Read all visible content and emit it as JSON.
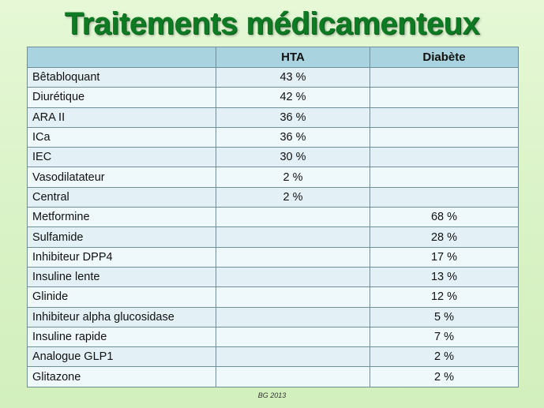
{
  "title": "Traitements médicamenteux",
  "table": {
    "headers": [
      "",
      "HTA",
      "Diabète"
    ],
    "rows": [
      {
        "name": "Bêtabloquant",
        "hta": "43 %",
        "diabete": ""
      },
      {
        "name": "Diurétique",
        "hta": "42 %",
        "diabete": ""
      },
      {
        "name": "ARA II",
        "hta": "36 %",
        "diabete": ""
      },
      {
        "name": "ICa",
        "hta": "36 %",
        "diabete": ""
      },
      {
        "name": "IEC",
        "hta": "30 %",
        "diabete": ""
      },
      {
        "name": "Vasodilatateur",
        "hta": "2 %",
        "diabete": ""
      },
      {
        "name": "Central",
        "hta": "2 %",
        "diabete": ""
      },
      {
        "name": "Metformine",
        "hta": "",
        "diabete": "68 %"
      },
      {
        "name": "Sulfamide",
        "hta": "",
        "diabete": "28 %"
      },
      {
        "name": "Inhibiteur DPP4",
        "hta": "",
        "diabete": "17 %"
      },
      {
        "name": "Insuline lente",
        "hta": "",
        "diabete": "13 %"
      },
      {
        "name": "Glinide",
        "hta": "",
        "diabete": "12 %"
      },
      {
        "name": "Inhibiteur alpha glucosidase",
        "hta": "",
        "diabete": "5 %"
      },
      {
        "name": "Insuline rapide",
        "hta": "",
        "diabete": "7 %"
      },
      {
        "name": "Analogue GLP1",
        "hta": "",
        "diabete": "2 %"
      },
      {
        "name": "Glitazone",
        "hta": "",
        "diabete": "2 %"
      }
    ]
  },
  "footer": "BG 2013",
  "colors": {
    "title": "#0f7a24",
    "header_bg": "#a9d4df",
    "row_bg": "#e3f1f6",
    "background": "#d9f2c6"
  }
}
